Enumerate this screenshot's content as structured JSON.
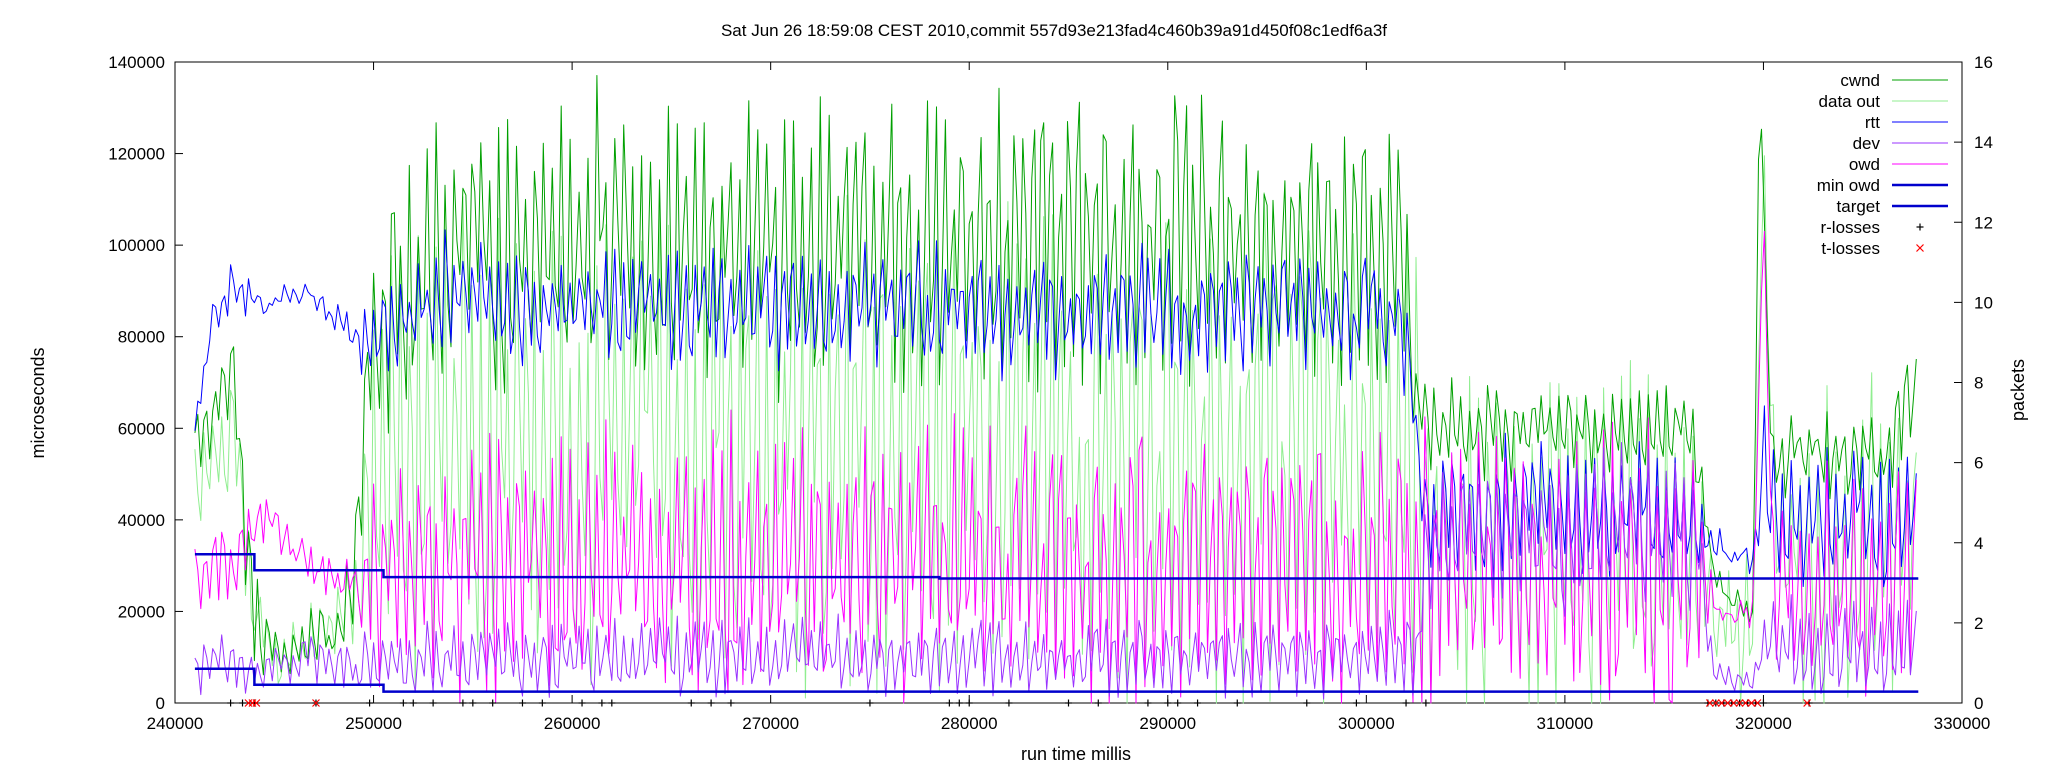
{
  "chart_data": {
    "type": "line",
    "title": "Sat Jun 26 18:59:08 CEST 2010,commit 557d93e213fad4c460b39a91d450f08c1edf6a3f",
    "xlabel": "run time millis",
    "ylabel": "microseconds",
    "y2label": "packets",
    "xlim": [
      240000,
      330000
    ],
    "ylim": [
      0,
      140000
    ],
    "y2lim": [
      0,
      16
    ],
    "x_ticks": [
      240000,
      250000,
      260000,
      270000,
      280000,
      290000,
      300000,
      310000,
      320000,
      330000
    ],
    "y_ticks": [
      0,
      20000,
      40000,
      60000,
      80000,
      100000,
      120000,
      140000
    ],
    "y2_ticks": [
      0,
      2,
      4,
      6,
      8,
      10,
      12,
      14,
      16
    ],
    "x_tick_labels": [
      "240000",
      "250000",
      "260000",
      "270000",
      "280000",
      "290000",
      "300000",
      "310000",
      "320000",
      "330000"
    ],
    "y_tick_labels": [
      "0",
      "20000",
      "40000",
      "60000",
      "80000",
      "100000",
      "120000",
      "140000"
    ],
    "y2_tick_labels": [
      "0",
      "2",
      "4",
      "6",
      "8",
      "10",
      "12",
      "14",
      "16"
    ],
    "grid": false,
    "legend_position": "top-right",
    "series": [
      {
        "name": "cwnd",
        "axis": "y2",
        "color": "#00a000",
        "width": 1,
        "style": "line",
        "x": [
          241000,
          242000,
          243000,
          243500,
          244000,
          245000,
          246000,
          247000,
          248000,
          249000,
          250000,
          252000,
          255000,
          258000,
          261000,
          264000,
          267000,
          270000,
          273000,
          276000,
          279000,
          282000,
          285000,
          288000,
          291000,
          294000,
          297000,
          300000,
          302000,
          302500,
          303000,
          306000,
          309000,
          312000,
          315000,
          316500,
          317500,
          318500,
          319500,
          319800,
          320100,
          320500,
          321000,
          322000,
          323000,
          324000,
          325000,
          326000,
          327000,
          327800
        ],
        "y": [
          6.5,
          7.2,
          8.5,
          4.5,
          2.2,
          1.2,
          1.3,
          1.8,
          1.6,
          3.0,
          9.5,
          10.8,
          11.5,
          11.2,
          11.8,
          11.6,
          11.4,
          11.3,
          11.5,
          11.4,
          11.6,
          11.7,
          11.5,
          11.4,
          11.6,
          11.5,
          11.4,
          11.7,
          11.0,
          8.0,
          6.8,
          6.9,
          6.8,
          6.9,
          6.8,
          7.0,
          3.0,
          2.4,
          2.2,
          16.0,
          10.5,
          5.8,
          6.2,
          6.4,
          6.1,
          6.0,
          6.3,
          6.0,
          7.0,
          8.0
        ],
        "amp": [
          0.8,
          0.9,
          1.0,
          1.5,
          1.2,
          0.6,
          0.6,
          0.6,
          0.6,
          1.2,
          2.5,
          2.8,
          2.8,
          2.7,
          2.9,
          2.8,
          2.8,
          2.7,
          2.8,
          2.8,
          2.8,
          2.9,
          2.8,
          2.8,
          2.8,
          2.8,
          2.8,
          2.9,
          2.6,
          1.2,
          0.8,
          0.8,
          0.8,
          0.8,
          0.8,
          0.8,
          0.3,
          0.2,
          0.2,
          0,
          1.0,
          0.8,
          0.9,
          0.9,
          0.9,
          0.9,
          0.9,
          0.9,
          1.0,
          1.0
        ],
        "noise": 0.3
      },
      {
        "name": "data out",
        "axis": "y2",
        "color": "#90ee90",
        "width": 1,
        "style": "line",
        "x": [
          241000,
          243000,
          244000,
          245000,
          247000,
          249000,
          250000,
          255000,
          260000,
          265000,
          270000,
          275000,
          280000,
          285000,
          290000,
          295000,
          300000,
          302500,
          303000,
          310000,
          316500,
          317500,
          319500,
          320000,
          320500,
          323000,
          327800
        ],
        "y": [
          5.5,
          6.5,
          2.5,
          1.2,
          1.4,
          2.5,
          6.0,
          6.5,
          6.3,
          6.4,
          6.5,
          6.3,
          6.4,
          6.5,
          6.3,
          6.4,
          6.5,
          6.3,
          3.8,
          3.9,
          3.8,
          1.8,
          1.8,
          14.0,
          3.5,
          3.5,
          3.8
        ],
        "amp": [
          1.0,
          1.2,
          1.2,
          0.5,
          0.5,
          1.0,
          4.5,
          5.0,
          5.0,
          5.0,
          5.0,
          5.0,
          5.0,
          5.0,
          5.0,
          5.0,
          5.0,
          5.0,
          3.3,
          3.3,
          3.3,
          1.5,
          1.5,
          0,
          3.0,
          3.0,
          3.2
        ],
        "noise": 0.5
      },
      {
        "name": "rtt",
        "axis": "y",
        "color": "#0000ff",
        "width": 1,
        "style": "line",
        "x": [
          241000,
          242000,
          243000,
          244000,
          245000,
          246000,
          247000,
          248000,
          249000,
          250000,
          252000,
          255000,
          258000,
          261000,
          264000,
          267000,
          270000,
          273000,
          276000,
          279000,
          282000,
          285000,
          288000,
          291000,
          294000,
          297000,
          300000,
          302000,
          302500,
          303000,
          306000,
          309000,
          312000,
          315000,
          316500,
          317500,
          318500,
          319500,
          320000,
          320500,
          322000,
          325000,
          327800
        ],
        "y": [
          60000,
          86000,
          90000,
          88000,
          86000,
          91000,
          88000,
          84000,
          80000,
          80000,
          86000,
          88000,
          85000,
          87000,
          86000,
          85000,
          86000,
          85000,
          86000,
          87000,
          86000,
          85000,
          86000,
          85000,
          86000,
          86000,
          85000,
          82000,
          60000,
          42000,
          42000,
          42000,
          42000,
          42000,
          40000,
          35000,
          32000,
          30000,
          55000,
          42000,
          40000,
          40000,
          40000
        ],
        "amp": [
          3000,
          3500,
          4000,
          2000,
          1500,
          1500,
          1500,
          2000,
          3000,
          8000,
          10000,
          11000,
          11000,
          11000,
          11000,
          11000,
          11000,
          11000,
          11000,
          11000,
          11000,
          11000,
          11000,
          11000,
          11000,
          11000,
          11000,
          10000,
          8000,
          12000,
          12000,
          12000,
          12000,
          12000,
          10000,
          2000,
          1500,
          1000,
          15000,
          12000,
          12000,
          12000,
          12000
        ],
        "noise": 2500
      },
      {
        "name": "dev",
        "axis": "y",
        "color": "#9933ff",
        "width": 1,
        "style": "line",
        "x": [
          241000,
          243000,
          244000,
          245000,
          247000,
          249000,
          250000,
          260000,
          270000,
          280000,
          290000,
          300000,
          302500,
          303000,
          310000,
          316500,
          317500,
          319500,
          320000,
          321000,
          325000,
          327800
        ],
        "y": [
          8000,
          9000,
          6000,
          9000,
          10000,
          8000,
          9000,
          10000,
          10000,
          10000,
          10000,
          10000,
          12000,
          38000,
          38000,
          38000,
          6000,
          5000,
          14000,
          12000,
          12000,
          12000
        ],
        "amp": [
          4000,
          5000,
          3000,
          4000,
          4000,
          4000,
          6000,
          6500,
          6500,
          6500,
          6500,
          6500,
          8000,
          14000,
          14000,
          14000,
          2000,
          1500,
          8000,
          8000,
          8000,
          8000
        ],
        "noise": 1500
      },
      {
        "name": "owd",
        "axis": "y",
        "color": "#ff00ff",
        "width": 1,
        "style": "line",
        "x": [
          241000,
          242000,
          243000,
          244000,
          245000,
          246000,
          247000,
          248000,
          249000,
          250000,
          255000,
          260000,
          265000,
          270000,
          275000,
          280000,
          285000,
          290000,
          295000,
          300000,
          302500,
          303000,
          310000,
          316500,
          317500,
          319500,
          320000,
          320500,
          322000,
          322500,
          325000,
          327800
        ],
        "y": [
          28000,
          30000,
          30000,
          38000,
          40000,
          32000,
          30000,
          28000,
          26000,
          24000,
          30000,
          30000,
          30000,
          30000,
          30000,
          30000,
          30000,
          30000,
          30000,
          30000,
          28000,
          30000,
          30000,
          30000,
          20000,
          20000,
          110000,
          25000,
          25000,
          25000,
          25000,
          25000
        ],
        "amp": [
          6000,
          6000,
          6000,
          4000,
          4000,
          4000,
          3000,
          3000,
          3000,
          16000,
          24000,
          24000,
          24000,
          24000,
          24000,
          24000,
          24000,
          24000,
          24000,
          24000,
          22000,
          26000,
          26000,
          26000,
          1000,
          1000,
          0,
          20000,
          20000,
          20000,
          20000,
          20000
        ],
        "noise": 3000
      },
      {
        "name": "min owd",
        "axis": "y",
        "color": "#0000cc",
        "width": 2.5,
        "style": "step",
        "x": [
          241000,
          243500,
          244000,
          250000,
          250500,
          327800
        ],
        "y": [
          7500,
          7500,
          4000,
          4000,
          2500,
          2500
        ]
      },
      {
        "name": "target",
        "axis": "y",
        "color": "#0000cc",
        "width": 2.5,
        "style": "step",
        "x": [
          241000,
          243500,
          244000,
          250000,
          250500,
          278000,
          278500,
          327800
        ],
        "y": [
          32500,
          32500,
          29000,
          29000,
          27500,
          27500,
          27200,
          27200
        ]
      },
      {
        "name": "r-losses",
        "axis": "y",
        "color": "#000000",
        "style": "marker-plus",
        "x": [
          242800,
          243400,
          244000,
          247100,
          249800,
          251500,
          252000,
          253000,
          254500,
          255000,
          256000,
          257500,
          258500,
          260500,
          261500,
          262000,
          266000,
          267000,
          268000,
          275000,
          279000,
          279500,
          280000,
          282000,
          285000,
          286500,
          289000,
          290000,
          290500,
          291500,
          293500,
          297000,
          299500,
          302000,
          303000,
          317200,
          317600,
          318000,
          318400,
          318800,
          319200,
          319600,
          320000,
          322300
        ],
        "y": [
          0,
          0,
          0,
          0,
          0,
          0,
          0,
          0,
          0,
          0,
          0,
          0,
          0,
          0,
          0,
          0,
          0,
          0,
          0,
          0,
          0,
          0,
          0,
          0,
          0,
          0,
          0,
          0,
          0,
          0,
          0,
          0,
          0,
          0,
          0,
          0,
          0,
          0,
          0,
          0,
          0,
          0,
          0,
          0
        ]
      },
      {
        "name": "t-losses",
        "axis": "y",
        "color": "#ff0000",
        "style": "marker-x",
        "x": [
          243700,
          243900,
          244100,
          247100,
          317300,
          317600,
          317900,
          318200,
          318500,
          318800,
          319100,
          319400,
          319700,
          322200
        ],
        "y": [
          0,
          0,
          0,
          0,
          0,
          0,
          0,
          0,
          0,
          0,
          0,
          0,
          0,
          0
        ]
      }
    ]
  }
}
